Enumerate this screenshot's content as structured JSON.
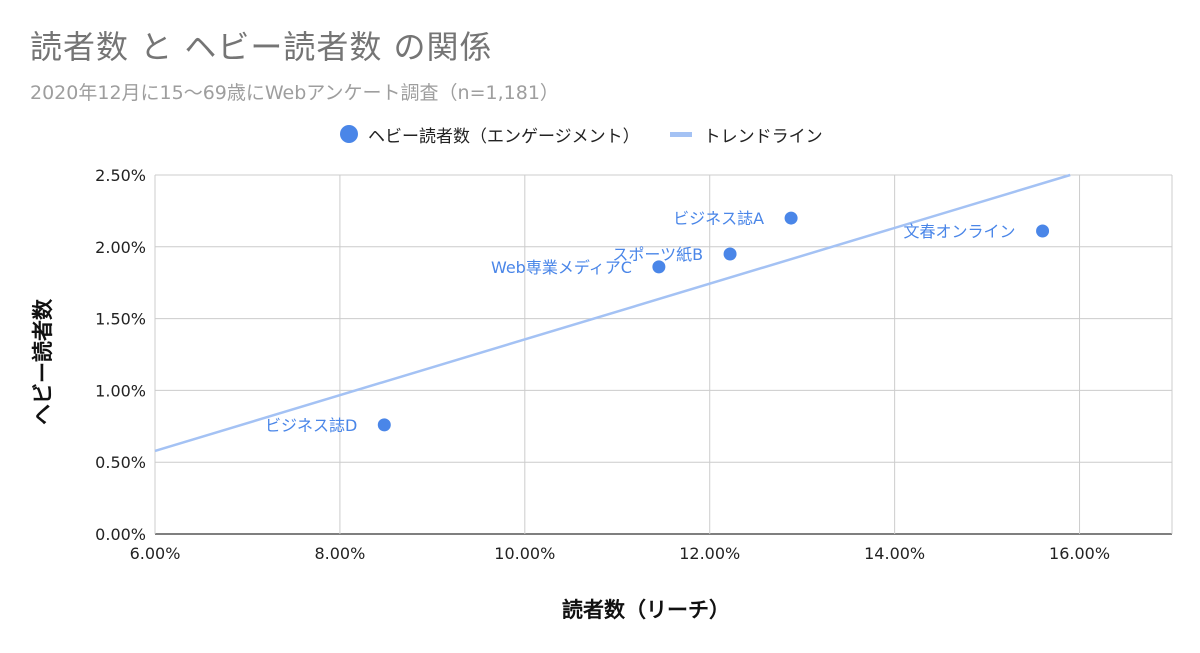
{
  "chart_data": {
    "type": "scatter",
    "title": "読者数 と ヘビー読者数 の関係",
    "subtitle": "2020年12月に15〜69歳にWebアンケート調査（n=1,181）",
    "xlabel": "読者数（リーチ）",
    "ylabel": "ヘビー読者数",
    "xlim": [
      0.06,
      0.17
    ],
    "ylim": [
      0,
      0.025
    ],
    "x_ticks": [
      0.06,
      0.08,
      0.1,
      0.12,
      0.14,
      0.16
    ],
    "x_tick_labels": [
      "6.00%",
      "8.00%",
      "10.00%",
      "12.00%",
      "14.00%",
      "16.00%"
    ],
    "y_ticks": [
      0,
      0.005,
      0.01,
      0.015,
      0.02,
      0.025
    ],
    "y_tick_labels": [
      "0.00%",
      "0.50%",
      "1.00%",
      "1.50%",
      "2.00%",
      "2.50%"
    ],
    "grid": true,
    "legend_position": "top",
    "series": [
      {
        "name": "ヘビー読者数（エンゲージメント）",
        "color": "#4a86e8",
        "points": [
          {
            "label": "ビジネス誌A",
            "x": 0.1288,
            "y": 0.022
          },
          {
            "label": "文春オンライン",
            "x": 0.156,
            "y": 0.0211
          },
          {
            "label": "スポーツ紙B",
            "x": 0.1222,
            "y": 0.0195
          },
          {
            "label": "Web専業メディアC",
            "x": 0.1145,
            "y": 0.0186
          },
          {
            "label": "ビジネス誌D",
            "x": 0.0848,
            "y": 0.0076
          }
        ]
      }
    ],
    "trendline": {
      "name": "トレンドライン",
      "color": "#a4c2f4",
      "slope": 0.1941,
      "intercept": -0.00586
    }
  }
}
